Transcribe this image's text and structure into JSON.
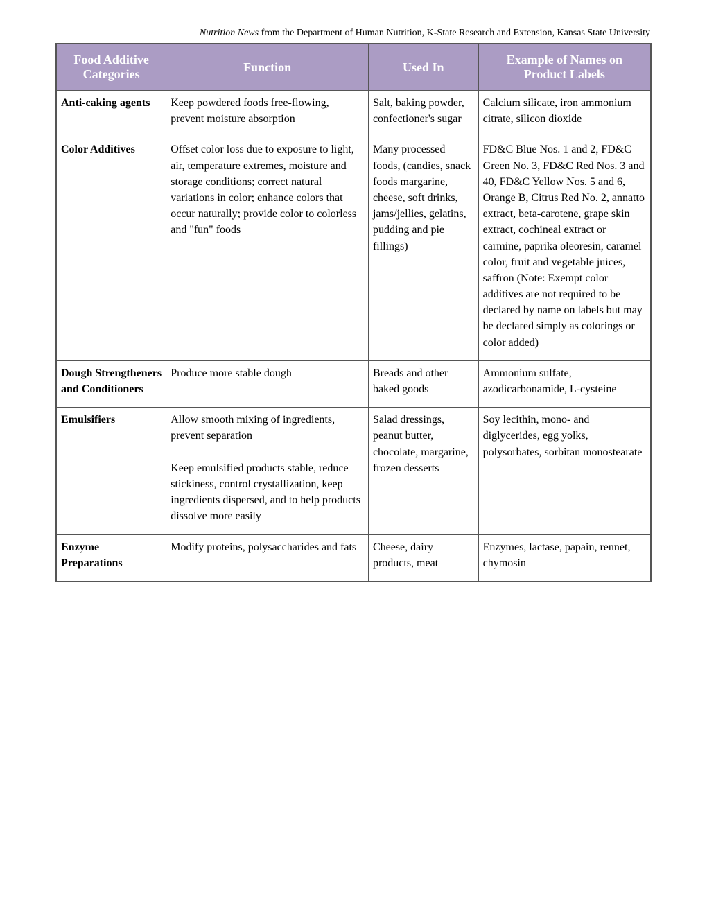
{
  "caption_prefix": "Nutrition News",
  "caption_rest": " from the Department of Human Nutrition, K-State Research and Extension, Kansas State University",
  "headers": {
    "categories": "Food Additive Categories",
    "function": "Function",
    "usedin": "Used In",
    "examples": "Example of Names on Product Labels"
  },
  "rows": [
    {
      "category": "Anti-caking agents",
      "function": "Keep powdered foods free-flowing, prevent moisture absorption",
      "usedin": "Salt, baking powder, confectioner's sugar",
      "examples": "Calcium silicate, iron ammonium citrate, silicon dioxide"
    },
    {
      "category": "Color Additives",
      "function": "Offset color loss due to exposure to light, air, temperature extremes, moisture and storage conditions; correct natural variations in color; enhance colors that occur naturally; provide color to colorless and \"fun\" foods",
      "usedin": "Many processed foods, (candies, snack foods margarine, cheese, soft drinks, jams/jellies, gelatins, pudding and pie fillings)",
      "examples": "FD&C Blue Nos. 1 and 2, FD&C Green No. 3, FD&C Red Nos. 3 and 40, FD&C Yellow Nos. 5 and 6, Orange B, Citrus Red No. 2, annatto extract, beta-carotene, grape skin extract, cochineal extract or carmine, paprika oleoresin, caramel color, fruit and vegetable juices, saffron (Note: Exempt color additives are not required to be declared by name on labels but may be declared simply as colorings or color added)"
    },
    {
      "category": "Dough Strengtheners and Conditioners",
      "function": "Produce more stable dough",
      "usedin": "Breads and other baked goods",
      "examples": "Ammonium sulfate, azodicarbonamide, L-cysteine"
    },
    {
      "category": "Emulsifiers",
      "function": "Allow smooth mixing of ingredients, prevent separation\n\nKeep emulsified products stable, reduce stickiness, control crystallization, keep ingredients dispersed, and to help products dissolve more easily",
      "usedin": "Salad dressings, peanut butter, chocolate, margarine, frozen desserts",
      "examples": "Soy lecithin, mono- and diglycerides, egg yolks, polysorbates, sorbitan monostearate"
    },
    {
      "category": "Enzyme Preparations",
      "function": "Modify proteins, polysaccharides and fats",
      "usedin": "Cheese, dairy products, meat",
      "examples": "Enzymes, lactase, papain, rennet, chymosin"
    }
  ],
  "styling": {
    "header_bg": "#ab9cc4",
    "header_text_color": "#ffffff",
    "border_color": "#555555",
    "body_bg": "#ffffff",
    "font_family": "Georgia, Times New Roman, serif",
    "header_fontsize": 18,
    "cell_fontsize": 16,
    "caption_fontsize": 14,
    "col_widths": [
      "18.5%",
      "34%",
      "18.5%",
      "29%"
    ]
  }
}
